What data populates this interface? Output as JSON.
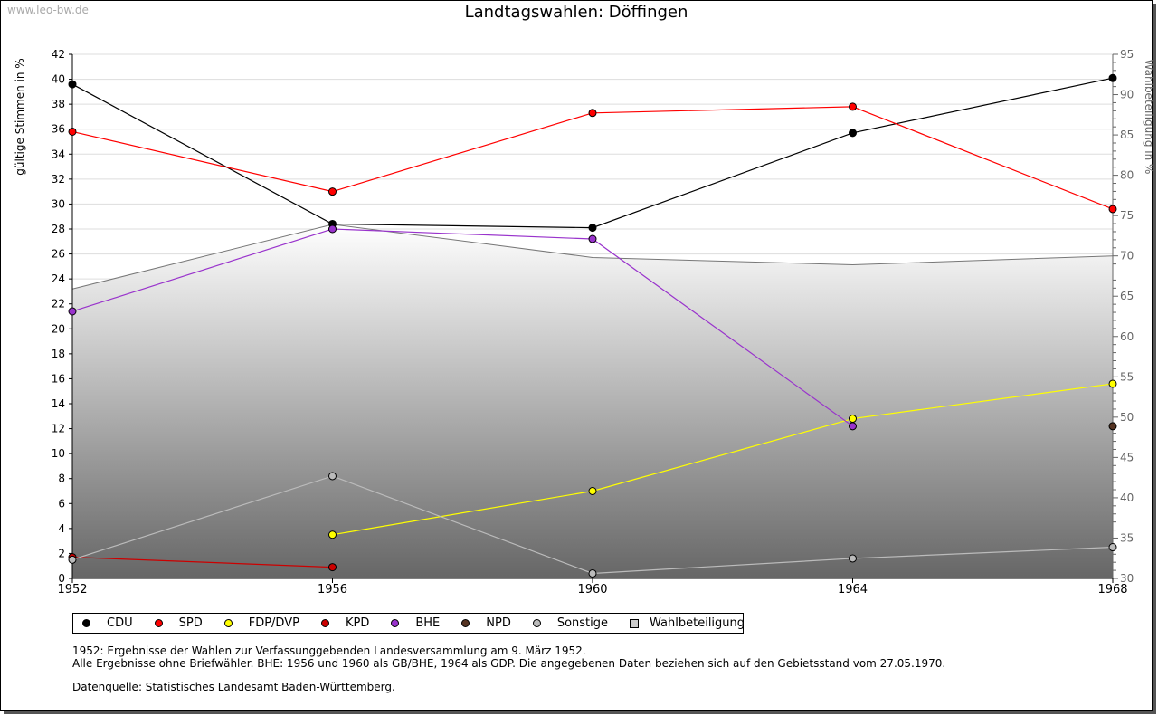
{
  "watermark": "www.leo-bw.de",
  "chart_data": {
    "type": "line",
    "title": "Landtagswahlen: Döffingen",
    "ylabel": "gültige Stimmen in %",
    "y2label": "Wahlbeteiligung in %",
    "x": [
      1952,
      1956,
      1960,
      1964,
      1968
    ],
    "x_ticks": [
      "1952",
      "1956",
      "1960",
      "1964",
      "1968"
    ],
    "ylim": [
      0,
      42
    ],
    "y2lim": [
      30,
      95
    ],
    "y_ticks": [
      0,
      2,
      4,
      6,
      8,
      10,
      12,
      14,
      16,
      18,
      20,
      22,
      24,
      26,
      28,
      30,
      32,
      34,
      36,
      38,
      40,
      42
    ],
    "y2_ticks": [
      30,
      35,
      40,
      45,
      50,
      55,
      60,
      65,
      70,
      75,
      80,
      85,
      90,
      95
    ],
    "grid": true,
    "legend_position": "bottom",
    "series": [
      {
        "name": "CDU",
        "color": "#000000",
        "values": [
          39.6,
          28.4,
          28.1,
          35.7,
          40.1
        ]
      },
      {
        "name": "SPD",
        "color": "#ff0000",
        "values": [
          35.8,
          31.0,
          37.3,
          37.8,
          29.6
        ]
      },
      {
        "name": "FDP/DVP",
        "color": "#ffff00",
        "values": [
          null,
          3.5,
          7.0,
          12.8,
          15.6
        ]
      },
      {
        "name": "KPD",
        "color": "#cc0000",
        "values": [
          1.7,
          0.9,
          null,
          null,
          null
        ]
      },
      {
        "name": "BHE",
        "color": "#9933cc",
        "values": [
          21.4,
          28.0,
          27.2,
          12.2,
          null
        ]
      },
      {
        "name": "NPD",
        "color": "#553322",
        "values": [
          null,
          null,
          null,
          null,
          12.2
        ]
      },
      {
        "name": "Sonstige",
        "color": "#bbbbbb",
        "values": [
          1.5,
          8.2,
          0.4,
          1.6,
          2.5
        ]
      }
    ],
    "area_series": {
      "name": "Wahlbeteiligung",
      "axis": "right",
      "color": "#cccccc",
      "values": [
        65.9,
        73.9,
        69.8,
        68.9,
        70.0
      ]
    }
  },
  "notes": [
    "1952: Ergebnisse der Wahlen zur Verfassunggebenden Landesversammlung am 9. März 1952.",
    "Alle Ergebnisse ohne Briefwähler. BHE: 1956 und 1960 als GB/BHE, 1964 als GDP. Die angegebenen Daten beziehen sich auf den Gebietsstand vom 27.05.1970.",
    "Datenquelle: Statistisches Landesamt Baden-Württemberg."
  ]
}
